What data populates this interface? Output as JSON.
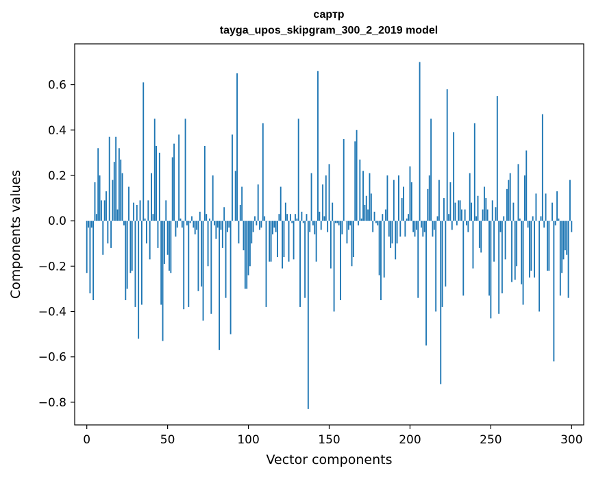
{
  "chart_data": {
    "type": "bar",
    "title_lines": [
      "сартр",
      "tayga_upos_skipgram_300_2_2019 model"
    ],
    "xlabel": "Vector components",
    "ylabel": "Components values",
    "xlim": [
      -7.5,
      307.5
    ],
    "ylim": [
      -0.9,
      0.78
    ],
    "xticks": [
      0,
      50,
      100,
      150,
      200,
      250,
      300
    ],
    "xtick_labels": [
      "0",
      "50",
      "100",
      "150",
      "200",
      "250",
      "300"
    ],
    "yticks": [
      -0.8,
      -0.6,
      -0.4,
      -0.2,
      0.0,
      0.2,
      0.4,
      0.6
    ],
    "ytick_labels": [
      "−0.8",
      "−0.6",
      "−0.4",
      "−0.2",
      "0.0",
      "0.2",
      "0.4",
      "0.6"
    ],
    "grid": false,
    "bar_color": "#1f77b4",
    "values": [
      -0.23,
      -0.03,
      -0.32,
      -0.03,
      -0.35,
      0.17,
      0.03,
      0.32,
      0.2,
      0.09,
      -0.15,
      0.09,
      0.13,
      -0.1,
      0.37,
      -0.12,
      0.18,
      0.26,
      0.37,
      0.05,
      0.32,
      0.27,
      0.21,
      -0.02,
      -0.35,
      -0.3,
      0.15,
      -0.23,
      -0.22,
      0.08,
      -0.38,
      0.07,
      -0.52,
      0.09,
      -0.37,
      0.61,
      0.01,
      -0.1,
      0.09,
      -0.17,
      0.21,
      0.03,
      0.45,
      0.33,
      -0.12,
      0.3,
      -0.37,
      -0.53,
      -0.19,
      0.09,
      -0.15,
      -0.22,
      -0.23,
      0.28,
      0.34,
      -0.07,
      -0.03,
      0.38,
      0.01,
      -0.03,
      -0.39,
      0.45,
      -0.02,
      -0.38,
      -0.01,
      0.02,
      -0.03,
      -0.06,
      -0.04,
      -0.31,
      0.04,
      -0.29,
      -0.44,
      0.33,
      0.03,
      -0.2,
      0.01,
      -0.41,
      0.2,
      -0.02,
      -0.08,
      -0.03,
      -0.57,
      -0.04,
      -0.12,
      0.06,
      -0.34,
      -0.05,
      -0.03,
      -0.5,
      0.38,
      0.0,
      0.22,
      0.65,
      -0.1,
      0.07,
      0.15,
      -0.13,
      -0.3,
      -0.3,
      -0.24,
      -0.2,
      -0.1,
      -0.05,
      0.02,
      -0.02,
      0.16,
      -0.04,
      -0.03,
      0.43,
      0.02,
      -0.38,
      0.0,
      -0.18,
      -0.18,
      -0.06,
      -0.03,
      -0.05,
      -0.16,
      0.03,
      0.15,
      -0.21,
      -0.16,
      0.08,
      0.03,
      -0.18,
      0.03,
      -0.01,
      -0.17,
      0.03,
      0.01,
      0.45,
      -0.38,
      0.04,
      -0.01,
      -0.34,
      0.03,
      -0.83,
      -0.05,
      0.21,
      -0.02,
      -0.06,
      -0.18,
      0.66,
      0.04,
      -0.04,
      0.16,
      0.02,
      0.2,
      -0.05,
      0.25,
      -0.21,
      0.08,
      -0.4,
      -0.01,
      -0.01,
      -0.02,
      -0.35,
      -0.06,
      0.36,
      0.0,
      -0.1,
      -0.04,
      -0.02,
      -0.2,
      -0.16,
      0.35,
      0.4,
      -0.02,
      0.27,
      0.01,
      0.22,
      0.07,
      0.11,
      0.05,
      0.21,
      0.12,
      -0.05,
      0.04,
      -0.01,
      -0.02,
      -0.24,
      -0.35,
      0.03,
      -0.25,
      0.05,
      0.2,
      -0.07,
      -0.12,
      -0.1,
      0.18,
      -0.17,
      -0.1,
      0.2,
      -0.07,
      0.1,
      0.15,
      -0.07,
      0.01,
      0.03,
      0.24,
      0.17,
      -0.05,
      -0.07,
      -0.04,
      -0.34,
      0.7,
      -0.03,
      -0.07,
      -0.05,
      -0.55,
      0.14,
      0.2,
      0.45,
      -0.07,
      -0.04,
      -0.4,
      0.02,
      0.18,
      -0.72,
      -0.38,
      0.1,
      -0.29,
      0.58,
      0.03,
      0.17,
      -0.04,
      0.39,
      0.08,
      -0.02,
      0.09,
      0.09,
      0.05,
      -0.33,
      0.05,
      -0.02,
      -0.05,
      0.21,
      0.08,
      -0.21,
      0.43,
      0.02,
      0.11,
      -0.12,
      -0.14,
      0.05,
      0.15,
      0.1,
      0.05,
      -0.33,
      -0.43,
      0.09,
      -0.18,
      0.06,
      0.55,
      -0.41,
      -0.05,
      -0.32,
      0.02,
      -0.17,
      0.14,
      0.18,
      0.21,
      -0.27,
      0.08,
      -0.26,
      -0.2,
      0.25,
      0.01,
      -0.28,
      -0.37,
      0.2,
      0.31,
      -0.03,
      -0.25,
      -0.22,
      0.02,
      -0.25,
      0.12,
      0.0,
      -0.4,
      0.02,
      0.47,
      -0.03,
      0.12,
      -0.22,
      -0.22,
      0.0,
      0.08,
      -0.62,
      -0.02,
      0.13,
      0.01,
      -0.33,
      -0.23,
      -0.17,
      -0.13,
      -0.15,
      -0.34,
      0.18,
      -0.05
    ]
  }
}
